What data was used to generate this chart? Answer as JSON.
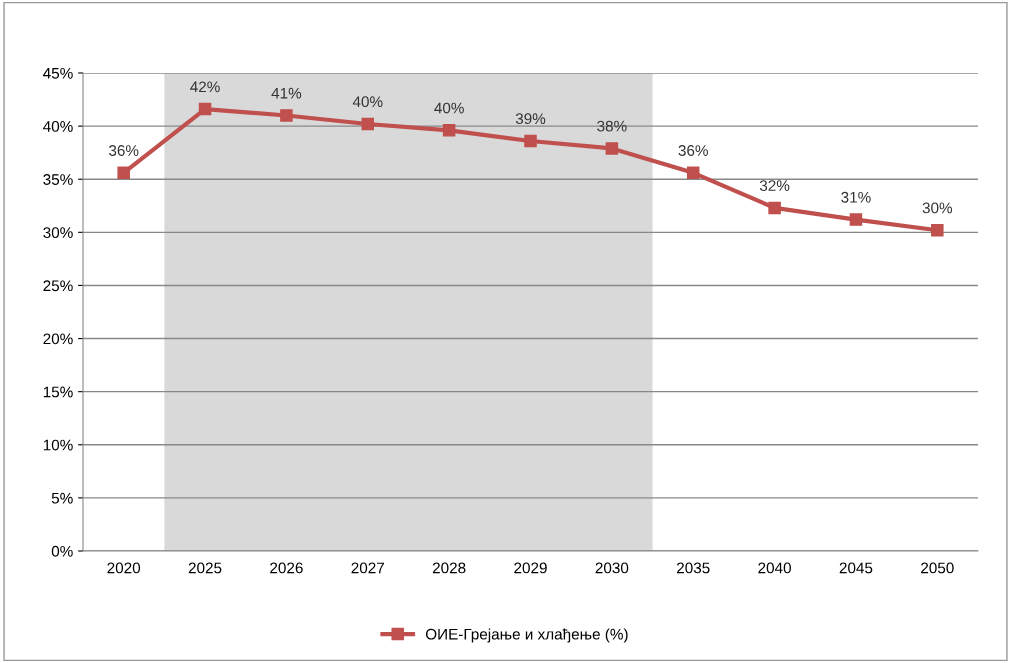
{
  "chart_data": {
    "type": "line",
    "categories": [
      "2020",
      "2025",
      "2026",
      "2027",
      "2028",
      "2029",
      "2030",
      "2035",
      "2040",
      "2045",
      "2050"
    ],
    "series": [
      {
        "name": "ОИЕ-Грејање и хлађење (%)",
        "color": "#c0504d",
        "values": [
          35.6,
          41.6,
          41.0,
          40.2,
          39.6,
          38.6,
          37.9,
          35.6,
          32.3,
          31.2,
          30.2
        ],
        "value_labels": [
          "36%",
          "42%",
          "41%",
          "40%",
          "40%",
          "39%",
          "38%",
          "36%",
          "32%",
          "31%",
          "30%"
        ]
      }
    ],
    "ylim": [
      0,
      45
    ],
    "yticks": [
      {
        "value": 0,
        "label": "0%"
      },
      {
        "value": 5,
        "label": "5%"
      },
      {
        "value": 10,
        "label": "10%"
      },
      {
        "value": 15,
        "label": "15%"
      },
      {
        "value": 20,
        "label": "20%"
      },
      {
        "value": 25,
        "label": "25%"
      },
      {
        "value": 30,
        "label": "30%"
      },
      {
        "value": 35,
        "label": "35%"
      },
      {
        "value": 40,
        "label": "40%"
      },
      {
        "value": 45,
        "label": "45%"
      }
    ],
    "bands": [
      {
        "axis": "x",
        "from": "2025",
        "to": "2030",
        "color": "#d9d9d9"
      }
    ],
    "grid": "y",
    "legend": "bottom",
    "marker": "square",
    "line_style": "solid"
  }
}
